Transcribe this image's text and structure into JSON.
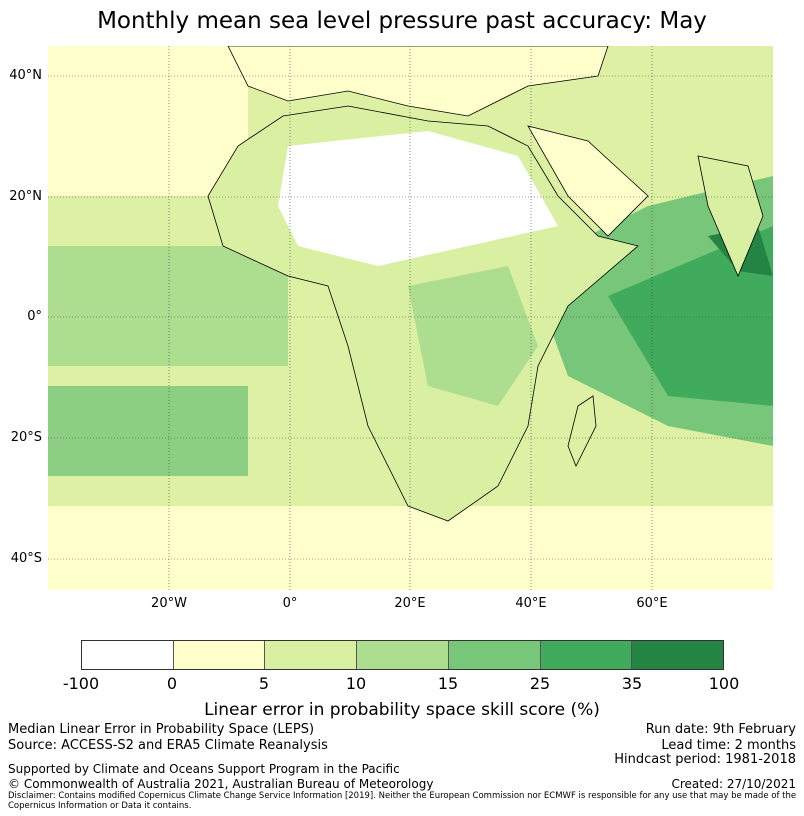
{
  "title": "Monthly mean sea level pressure past accuracy: May",
  "map": {
    "lat_labels": [
      "40°N",
      "20°N",
      "0°",
      "20°S",
      "40°S"
    ],
    "lon_labels": [
      "20°W",
      "0°",
      "20°E",
      "40°E",
      "60°E"
    ],
    "colors": {
      "ocean_default": "#ddf0a4",
      "low": "#ffffcc",
      "mid": "#addd8e",
      "high": "#78c679",
      "very_high": "#41ab5d",
      "top": "#238443",
      "none": "#ffffff"
    }
  },
  "colorbar": {
    "ticks": [
      "-100",
      "0",
      "5",
      "10",
      "15",
      "25",
      "35",
      "100"
    ],
    "colors": [
      "#ffffff",
      "#ffffcc",
      "#d9f0a3",
      "#addd8e",
      "#78c679",
      "#41ab5d",
      "#238443"
    ],
    "title": "Linear error in probability space skill score (%)"
  },
  "footer": {
    "left1": "Median Linear Error in Probability Space (LEPS)",
    "left2": "Source: ACCESS-S2 and ERA5 Climate Reanalysis",
    "left3": "Supported by Climate and Oceans Support Program in the Pacific",
    "left4": "© Commonwealth of Australia 2021, Australian Bureau of Meteorology",
    "right1": "Run date: 9th February",
    "right2": "Lead time: 2 months",
    "right3": "Hindcast period: 1981-2018",
    "right4": "Created: 27/10/2021",
    "disclaimer": "Disclaimer: Contains modified Copernicus Climate Change Service Information [2019]. Neither the European Commission nor ECMWF is responsible for any use that may be made of the Copernicus Information or Data it contains."
  }
}
